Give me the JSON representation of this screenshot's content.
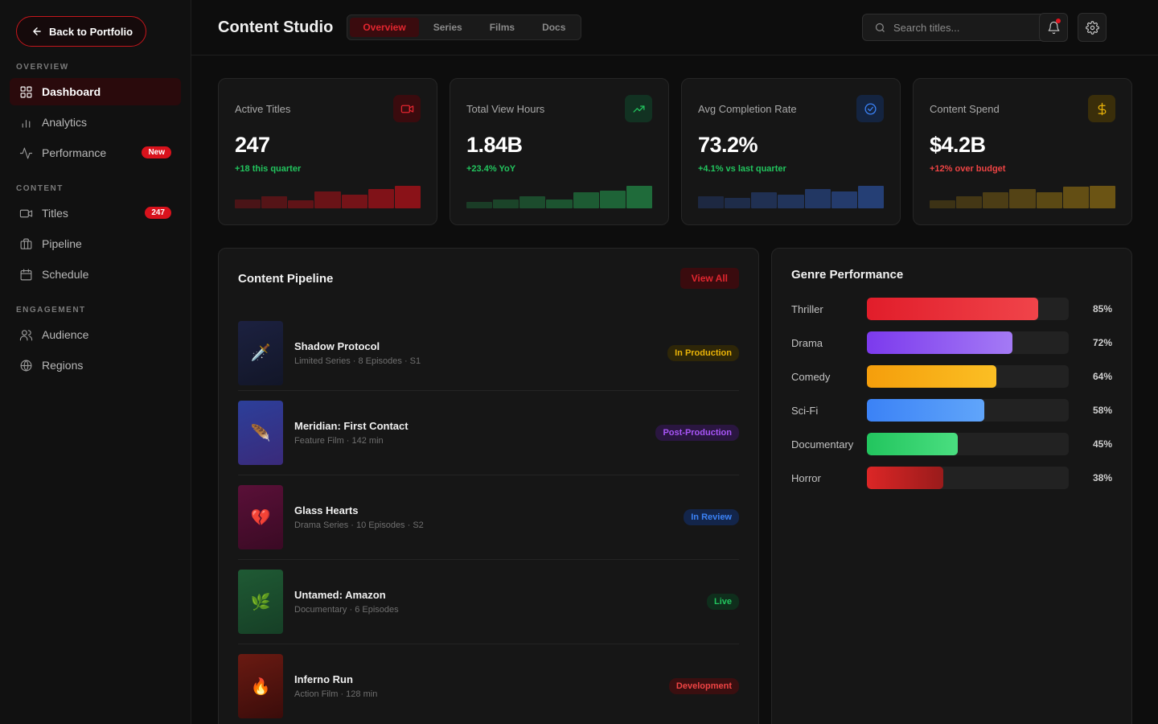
{
  "sidebar": {
    "back_label": "Back to Portfolio",
    "sections": [
      {
        "heading": "OVERVIEW",
        "items": [
          {
            "label": "Dashboard",
            "icon": "grid-icon",
            "active": true
          },
          {
            "label": "Analytics",
            "icon": "bar-chart-icon"
          },
          {
            "label": "Performance",
            "icon": "activity-icon",
            "badge": "New"
          }
        ]
      },
      {
        "heading": "CONTENT",
        "items": [
          {
            "label": "Titles",
            "icon": "video-icon",
            "badge": "247"
          },
          {
            "label": "Pipeline",
            "icon": "briefcase-icon"
          },
          {
            "label": "Schedule",
            "icon": "calendar-icon"
          }
        ]
      },
      {
        "heading": "ENGAGEMENT",
        "items": [
          {
            "label": "Audience",
            "icon": "users-icon"
          },
          {
            "label": "Regions",
            "icon": "globe-icon"
          }
        ]
      }
    ]
  },
  "header": {
    "title": "Content Studio",
    "tabs": [
      {
        "label": "Overview",
        "active": true
      },
      {
        "label": "Series"
      },
      {
        "label": "Films"
      },
      {
        "label": "Docs"
      }
    ],
    "search_placeholder": "Search titles..."
  },
  "stats": [
    {
      "label": "Active Titles",
      "value": "247",
      "delta": "+18 this quarter",
      "delta_color": "#22c55e",
      "icon": "video-icon",
      "icon_color": "#e2262f",
      "icon_bg": "#3a0b0e",
      "bar_color": "#8a1218",
      "bars": [
        0.4,
        0.55,
        0.35,
        0.75,
        0.6,
        0.85,
        1.0
      ]
    },
    {
      "label": "Total View Hours",
      "value": "1.84B",
      "delta": "+23.4% YoY",
      "delta_color": "#22c55e",
      "icon": "trending-up-icon",
      "icon_color": "#22c55e",
      "icon_bg": "#123222",
      "bar_color": "#1f6b3a",
      "bars": [
        0.3,
        0.4,
        0.55,
        0.4,
        0.7,
        0.8,
        1.0
      ]
    },
    {
      "label": "Avg Completion Rate",
      "value": "73.2%",
      "delta": "+4.1% vs last quarter",
      "delta_color": "#22c55e",
      "icon": "check-circle-icon",
      "icon_color": "#3b82f6",
      "icon_bg": "#142440",
      "bar_color": "#253f75",
      "bars": [
        0.55,
        0.45,
        0.7,
        0.6,
        0.85,
        0.75,
        1.0
      ]
    },
    {
      "label": "Content Spend",
      "value": "$4.2B",
      "delta": "+12% over budget",
      "delta_color": "#ef4444",
      "icon": "dollar-icon",
      "icon_color": "#eab308",
      "icon_bg": "#3a2e0a",
      "bar_color": "#6b5414",
      "bars": [
        0.35,
        0.55,
        0.7,
        0.85,
        0.7,
        0.95,
        1.0
      ]
    }
  ],
  "pipeline": {
    "title": "Content Pipeline",
    "view_all": "View All",
    "items": [
      {
        "title": "Shadow Protocol",
        "sub": "Limited Series · 8 Episodes · S1",
        "status": "In Production",
        "status_color": "#eab308",
        "status_bg": "#2e2608",
        "thumb": "🗡️",
        "thumb_bg": "linear-gradient(160deg,#1c2140,#121628)"
      },
      {
        "title": "Meridian: First Contact",
        "sub": "Feature Film · 142 min",
        "status": "Post-Production",
        "status_color": "#a855f7",
        "status_bg": "#2a1640",
        "thumb": "🪶",
        "thumb_bg": "linear-gradient(160deg,#2c3f9a,#3a2a7a)"
      },
      {
        "title": "Glass Hearts",
        "sub": "Drama Series · 10 Episodes · S2",
        "status": "In Review",
        "status_color": "#3b82f6",
        "status_bg": "#13254a",
        "thumb": "💔",
        "thumb_bg": "linear-gradient(160deg,#5a1038,#3a0a24)"
      },
      {
        "title": "Untamed: Amazon",
        "sub": "Documentary · 6 Episodes",
        "status": "Live",
        "status_color": "#22c55e",
        "status_bg": "#0f2e1c",
        "thumb": "🌿",
        "thumb_bg": "linear-gradient(160deg,#1f5a34,#163f26)"
      },
      {
        "title": "Inferno Run",
        "sub": "Action Film · 128 min",
        "status": "Development",
        "status_color": "#ef4444",
        "status_bg": "#3a0f10",
        "thumb": "🔥",
        "thumb_bg": "linear-gradient(160deg,#6a1a12,#3a0c0a)"
      }
    ]
  },
  "genres": {
    "title": "Genre Performance",
    "items": [
      {
        "name": "Thriller",
        "pct_label": "85%",
        "value": 85,
        "gradient": "linear-gradient(90deg,#e11d2a,#f0444a)"
      },
      {
        "name": "Drama",
        "pct_label": "72%",
        "value": 72,
        "gradient": "linear-gradient(90deg,#7c3aed,#a47af5)"
      },
      {
        "name": "Comedy",
        "pct_label": "64%",
        "value": 64,
        "gradient": "linear-gradient(90deg,#f59e0b,#fbbf24)"
      },
      {
        "name": "Sci-Fi",
        "pct_label": "58%",
        "value": 58,
        "gradient": "linear-gradient(90deg,#3b82f6,#60a5fa)"
      },
      {
        "name": "Documentary",
        "pct_label": "45%",
        "value": 45,
        "gradient": "linear-gradient(90deg,#22c55e,#4ade80)"
      },
      {
        "name": "Horror",
        "pct_label": "38%",
        "value": 38,
        "gradient": "linear-gradient(90deg,#dc2626,#991b1b)"
      }
    ]
  }
}
